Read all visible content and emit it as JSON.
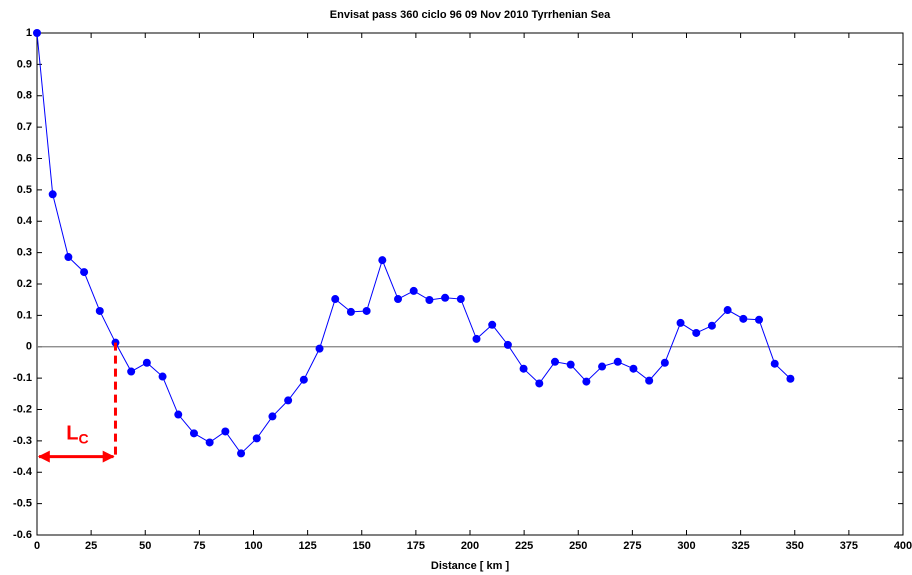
{
  "chart_data": {
    "type": "line",
    "title": "Envisat pass 360 ciclo 96 09 Nov 2010 Tyrrhenian Sea",
    "x_label": "Distance [ km ]",
    "x": [
      0,
      7.25,
      14.5,
      21.75,
      29,
      36.25,
      43.5,
      50.75,
      58,
      65.25,
      72.5,
      79.75,
      87,
      94.25,
      101.5,
      108.75,
      116,
      123.25,
      130.5,
      137.75,
      145,
      152.25,
      159.5,
      166.75,
      174,
      181.25,
      188.5,
      195.75,
      203,
      210.25,
      217.5,
      224.75,
      232,
      239.25,
      246.5,
      253.75,
      261,
      268.25,
      275.5,
      282.75,
      290,
      297.25,
      304.5,
      311.75,
      319,
      326.25,
      333.5,
      340.75,
      348
    ],
    "series": [
      {
        "color": "#0000ff",
        "values": [
          1,
          0.486,
          0.286,
          0.238,
          0.114,
          0.013,
          -0.079,
          -0.051,
          -0.095,
          -0.216,
          -0.276,
          -0.305,
          -0.27,
          -0.34,
          -0.292,
          -0.222,
          -0.171,
          -0.105,
          -0.006,
          0.152,
          0.111,
          0.114,
          0.276,
          0.152,
          0.178,
          0.149,
          0.156,
          0.152,
          0.025,
          0.07,
          0.006,
          -0.07,
          -0.117,
          -0.048,
          -0.057,
          -0.111,
          -0.063,
          -0.048,
          -0.07,
          -0.108,
          -0.051,
          0.076,
          0.044,
          0.067,
          0.117,
          0.089,
          0.086,
          -0.054,
          -0.102
        ]
      }
    ],
    "xlim": [
      0,
      400
    ],
    "xticks": [
      0,
      25,
      50,
      75,
      100,
      125,
      150,
      175,
      200,
      225,
      250,
      275,
      300,
      325,
      350,
      375,
      400
    ],
    "ylim": [
      -0.6,
      1
    ],
    "yticks": [
      -0.6,
      -0.5,
      -0.4,
      -0.3,
      -0.2,
      -0.1,
      0,
      0.1,
      0.2,
      0.3,
      0.4,
      0.5,
      0.6,
      0.7,
      0.8,
      0.9,
      1
    ],
    "zero_line": true,
    "annotation": {
      "text": "L",
      "subscript": "C",
      "color": "#ff0000",
      "x": 36.25,
      "y": -0.35
    }
  }
}
